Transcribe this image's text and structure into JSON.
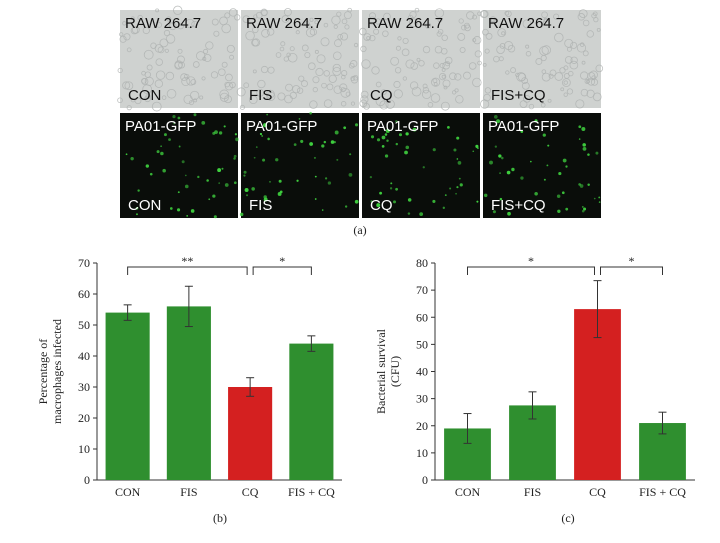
{
  "panel_a": {
    "rows": [
      {
        "tiles": [
          {
            "top": "RAW 264.7",
            "bottom": "CON"
          },
          {
            "top": "RAW 264.7",
            "bottom": "FIS"
          },
          {
            "top": "RAW 264.7",
            "bottom": "CQ"
          },
          {
            "top": "RAW 264.7",
            "bottom": "FIS+CQ"
          }
        ]
      },
      {
        "tiles": [
          {
            "top": "PA01-GFP",
            "bottom": "CON"
          },
          {
            "top": "PA01-GFP",
            "bottom": "FIS"
          },
          {
            "top": "PA01-GFP",
            "bottom": "CQ"
          },
          {
            "top": "PA01-GFP",
            "bottom": "FIS+CQ"
          }
        ]
      }
    ],
    "caption": "(a)"
  },
  "chart_data": [
    {
      "type": "bar",
      "caption": "(b)",
      "ylabel": [
        "Percentage of",
        "macrophages infected"
      ],
      "categories": [
        "CON",
        "FIS",
        "CQ",
        "FIS + CQ"
      ],
      "values": [
        54,
        56,
        30,
        44
      ],
      "errors": [
        2.5,
        6.5,
        3,
        2.5
      ],
      "colors": [
        "#2f8f2f",
        "#2f8f2f",
        "#d42020",
        "#2f8f2f"
      ],
      "ylim": [
        0,
        70
      ],
      "yticks": [
        0,
        10,
        20,
        30,
        40,
        50,
        60,
        70
      ],
      "annotations": [
        {
          "label": "**",
          "between": [
            "CON",
            "CQ"
          ]
        },
        {
          "label": "*",
          "between": [
            "CQ",
            "FIS + CQ"
          ]
        }
      ]
    },
    {
      "type": "bar",
      "caption": "(c)",
      "ylabel": [
        "Bacterial survival",
        "(CFU)"
      ],
      "categories": [
        "CON",
        "FIS",
        "CQ",
        "FIS + CQ"
      ],
      "values": [
        19,
        27.5,
        63,
        21
      ],
      "errors": [
        5.5,
        5,
        10.5,
        4
      ],
      "colors": [
        "#2f8f2f",
        "#2f8f2f",
        "#d42020",
        "#2f8f2f"
      ],
      "ylim": [
        0,
        80
      ],
      "yticks": [
        0,
        10,
        20,
        30,
        40,
        50,
        60,
        70,
        80
      ],
      "annotations": [
        {
          "label": "*",
          "between": [
            "CON",
            "CQ"
          ]
        },
        {
          "label": "*",
          "between": [
            "CQ",
            "FIS + CQ"
          ]
        }
      ]
    }
  ]
}
